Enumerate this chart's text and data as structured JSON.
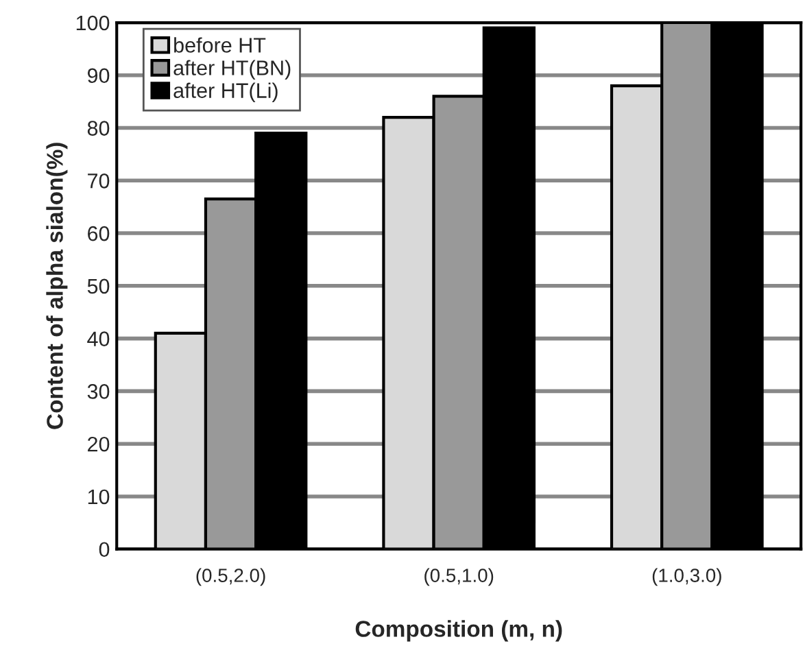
{
  "chart_data": {
    "type": "bar",
    "xlabel": "Composition (m, n)",
    "ylabel": "Content of alpha sialon(%)",
    "categories": [
      "(0.5,2.0)",
      "(0.5,1.0)",
      "(1.0,3.0)"
    ],
    "series": [
      {
        "name": "before HT",
        "color": "#d9d9d9",
        "values": [
          41,
          82,
          88
        ]
      },
      {
        "name": "after HT(BN)",
        "color": "#999999",
        "values": [
          66.5,
          86,
          100
        ]
      },
      {
        "name": "after HT(Li)",
        "color": "#000000",
        "values": [
          79,
          99,
          100
        ]
      }
    ],
    "ylim": [
      0,
      100
    ],
    "yticks": [
      0,
      10,
      20,
      30,
      40,
      50,
      60,
      70,
      80,
      90,
      100
    ],
    "grid": "y",
    "legend": "top left"
  }
}
